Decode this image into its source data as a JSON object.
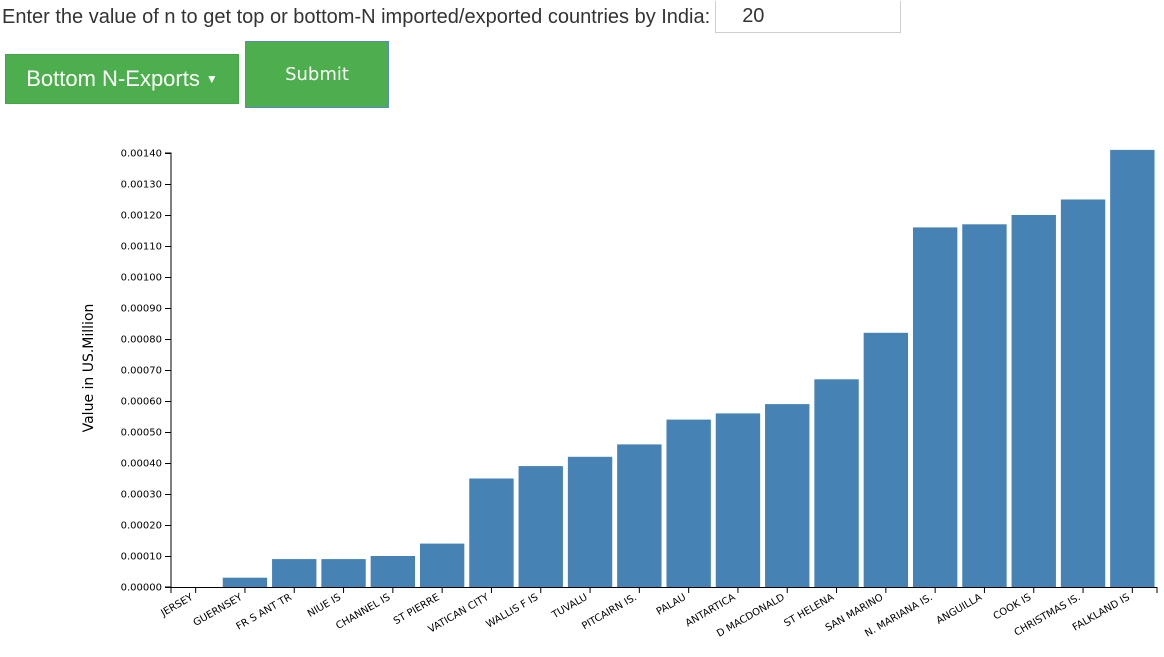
{
  "form": {
    "prompt": "Enter the value of n to get top or bottom-N imported/exported countries by India:",
    "n_value": "20",
    "selected_option": "Bottom N-Exports",
    "submit_label": "Submit"
  },
  "colors": {
    "bar": "#4682b4",
    "button": "#4cae4c"
  },
  "chart_data": {
    "type": "bar",
    "ylabel": "Value in US.Million",
    "ylim": [
      0,
      0.0014
    ],
    "ytick_values": [
      0,
      0.0001,
      0.0002,
      0.0003,
      0.0004,
      0.0005,
      0.0006,
      0.0007,
      0.0008,
      0.0009,
      0.001,
      0.0011,
      0.0012,
      0.0013,
      0.0014
    ],
    "ytick_labels": [
      "0.00000",
      "0.00010",
      "0.00020",
      "0.00030",
      "0.00040",
      "0.00050",
      "0.00060",
      "0.00070",
      "0.00080",
      "0.00090",
      "0.00100",
      "0.00110",
      "0.00120",
      "0.00130",
      "0.00140"
    ],
    "categories": [
      "JERSEY",
      "GUERNSEY",
      "FR S ANT TR",
      "NIUE IS",
      "CHANNEL IS",
      "ST PIERRE",
      "VATICAN CITY",
      "WALLIS F IS",
      "TUVALU",
      "PITCAIRN IS.",
      "PALAU",
      "ANTARTICA",
      "D MACDONALD",
      "ST HELENA",
      "SAN MARINO",
      "N. MARIANA IS.",
      "ANGUILLA",
      "COOK IS",
      "CHRISTMAS IS.",
      "FALKLAND IS"
    ],
    "values": [
      0,
      3e-05,
      9e-05,
      9e-05,
      0.0001,
      0.00014,
      0.00035,
      0.00039,
      0.00042,
      0.00046,
      0.00054,
      0.00056,
      0.00059,
      0.00067,
      0.00082,
      0.00116,
      0.00117,
      0.0012,
      0.00125,
      0.00141
    ]
  }
}
